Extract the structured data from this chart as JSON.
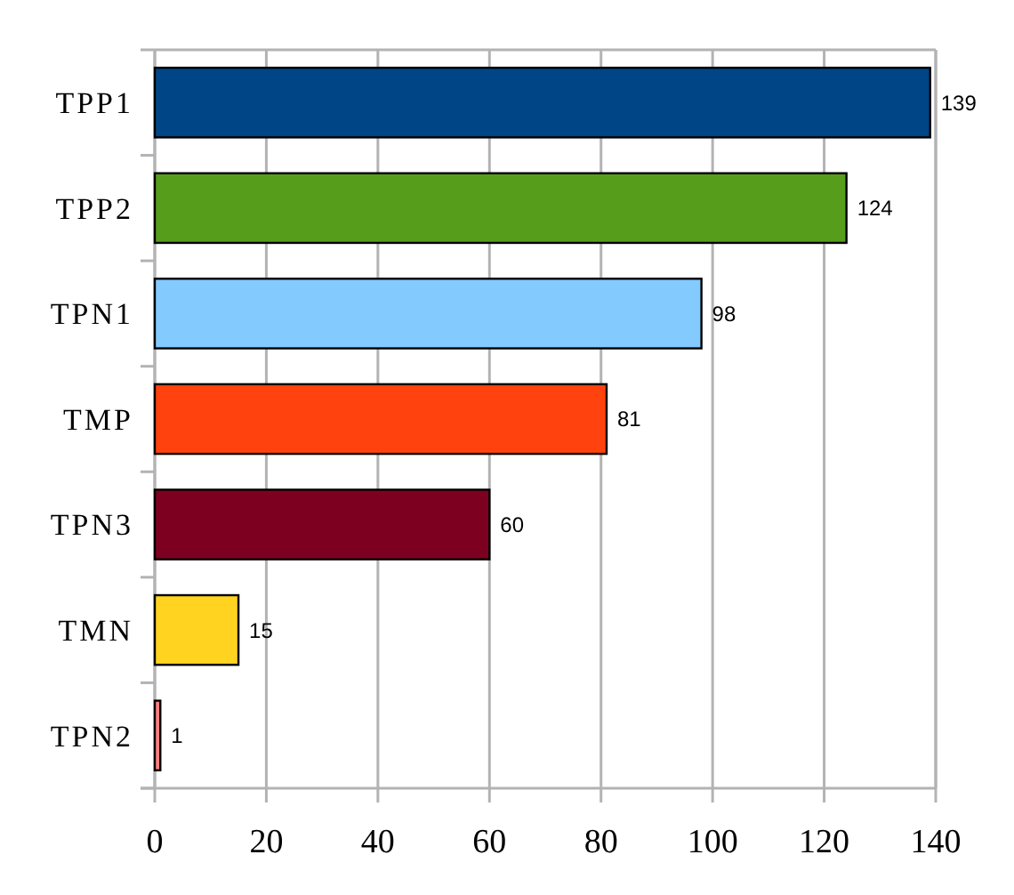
{
  "chart_data": {
    "type": "bar",
    "orientation": "horizontal",
    "categories": [
      "TPP1",
      "TPP2",
      "TPN1",
      "TMP",
      "TPN3",
      "TMN",
      "TPN2"
    ],
    "values": [
      139,
      124,
      98,
      81,
      60,
      15,
      1
    ],
    "colors": [
      "#004586",
      "#579d1c",
      "#83caff",
      "#ff420e",
      "#7e0021",
      "#ffd320",
      "#ff8080"
    ],
    "xlim": [
      0,
      140
    ],
    "xticks": [
      0,
      20,
      40,
      60,
      80,
      100,
      120,
      140
    ],
    "grid": "x",
    "data_labels": true
  }
}
